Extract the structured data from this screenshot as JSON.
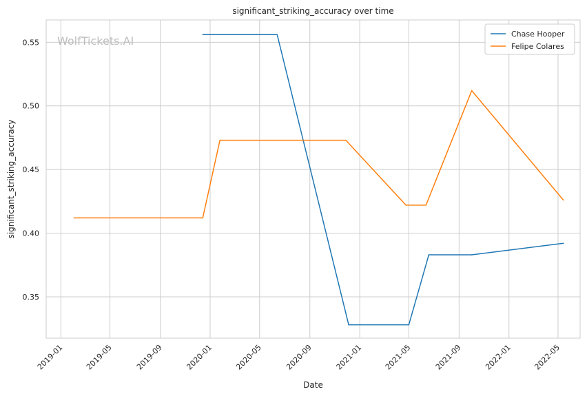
{
  "chart_data": {
    "type": "line",
    "title": "significant_striking_accuracy over time",
    "xlabel": "Date",
    "ylabel": "significant_striking_accuracy",
    "watermark": "WolfTickets.AI",
    "x_ticks": [
      "2019-01",
      "2019-05",
      "2019-09",
      "2020-01",
      "2020-05",
      "2020-09",
      "2021-01",
      "2021-05",
      "2021-09",
      "2022-01",
      "2022-05"
    ],
    "y_ticks": [
      0.35,
      0.4,
      0.45,
      0.5,
      0.55
    ],
    "xlim": [
      "2018-11-26",
      "2022-06-24"
    ],
    "ylim": [
      0.3175,
      0.5675
    ],
    "grid": true,
    "legend_position": "top-right",
    "series": [
      {
        "name": "Chase Hooper",
        "color": "#1f77b4",
        "points": [
          {
            "x": "2019-12-14",
            "y": 0.556
          },
          {
            "x": "2020-06-13",
            "y": 0.556
          },
          {
            "x": "2020-12-05",
            "y": 0.328
          },
          {
            "x": "2021-05-01",
            "y": 0.328
          },
          {
            "x": "2021-06-19",
            "y": 0.383
          },
          {
            "x": "2021-10-02",
            "y": 0.383
          },
          {
            "x": "2022-05-14",
            "y": 0.392
          }
        ]
      },
      {
        "name": "Felipe Colares",
        "color": "#ff7f0e",
        "points": [
          {
            "x": "2019-02-02",
            "y": 0.412
          },
          {
            "x": "2019-12-14",
            "y": 0.412
          },
          {
            "x": "2020-01-25",
            "y": 0.473
          },
          {
            "x": "2020-11-28",
            "y": 0.473
          },
          {
            "x": "2021-04-24",
            "y": 0.422
          },
          {
            "x": "2021-06-12",
            "y": 0.422
          },
          {
            "x": "2021-10-02",
            "y": 0.512
          },
          {
            "x": "2022-05-14",
            "y": 0.426
          }
        ]
      }
    ]
  }
}
